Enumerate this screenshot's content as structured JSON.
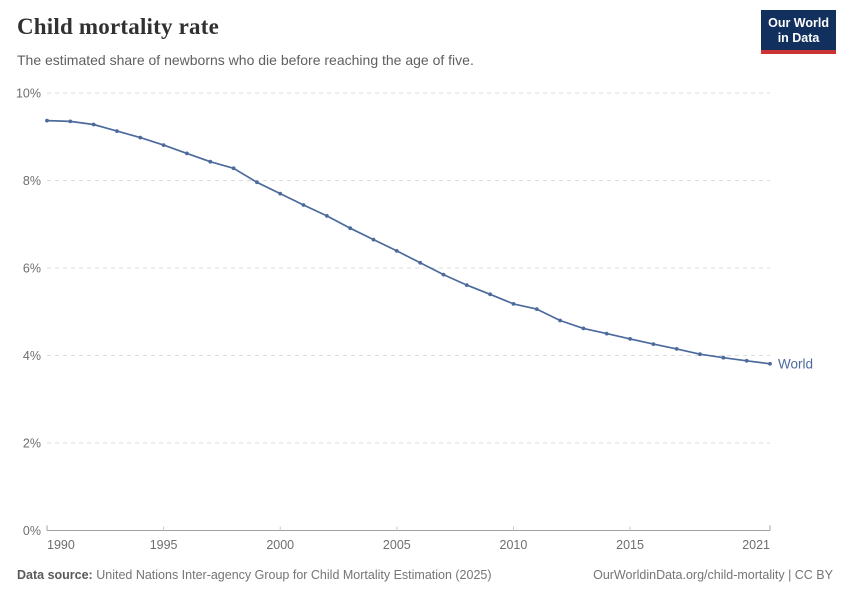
{
  "header": {
    "title": "Child mortality rate",
    "subtitle": "The estimated share of newborns who die before reaching the age of five."
  },
  "logo": {
    "line1": "Our World",
    "line2": "in Data",
    "bg_color": "#12305E",
    "accent_color": "#CB3335"
  },
  "chart_data": {
    "type": "line",
    "title": "Child mortality rate",
    "xlabel": "",
    "ylabel": "",
    "ylim": [
      0,
      10
    ],
    "y_ticks": [
      0,
      2,
      4,
      6,
      8,
      10
    ],
    "y_tick_suffix": "%",
    "x_ticks": [
      1990,
      1995,
      2000,
      2005,
      2010,
      2015,
      2021
    ],
    "grid": "horizontal-dashed",
    "legend_position": "end-of-line",
    "x": [
      1990,
      1991,
      1992,
      1993,
      1994,
      1995,
      1996,
      1997,
      1998,
      1999,
      2000,
      2001,
      2002,
      2003,
      2004,
      2005,
      2006,
      2007,
      2008,
      2009,
      2010,
      2011,
      2012,
      2013,
      2014,
      2015,
      2016,
      2017,
      2018,
      2019,
      2020,
      2021
    ],
    "series": [
      {
        "name": "World",
        "color": "#4C6A9C",
        "values": [
          9.37,
          9.35,
          9.28,
          9.13,
          8.98,
          8.81,
          8.62,
          8.43,
          8.28,
          7.96,
          7.7,
          7.44,
          7.19,
          6.91,
          6.65,
          6.39,
          6.12,
          5.85,
          5.61,
          5.4,
          5.18,
          5.06,
          4.8,
          4.62,
          4.5,
          4.38,
          4.26,
          4.15,
          4.03,
          3.95,
          3.88,
          3.81
        ]
      }
    ]
  },
  "footer": {
    "source_label": "Data source:",
    "source_text": "United Nations Inter-agency Group for Child Mortality Estimation (2025)",
    "link_text": "OurWorldinData.org/child-mortality | CC BY"
  }
}
